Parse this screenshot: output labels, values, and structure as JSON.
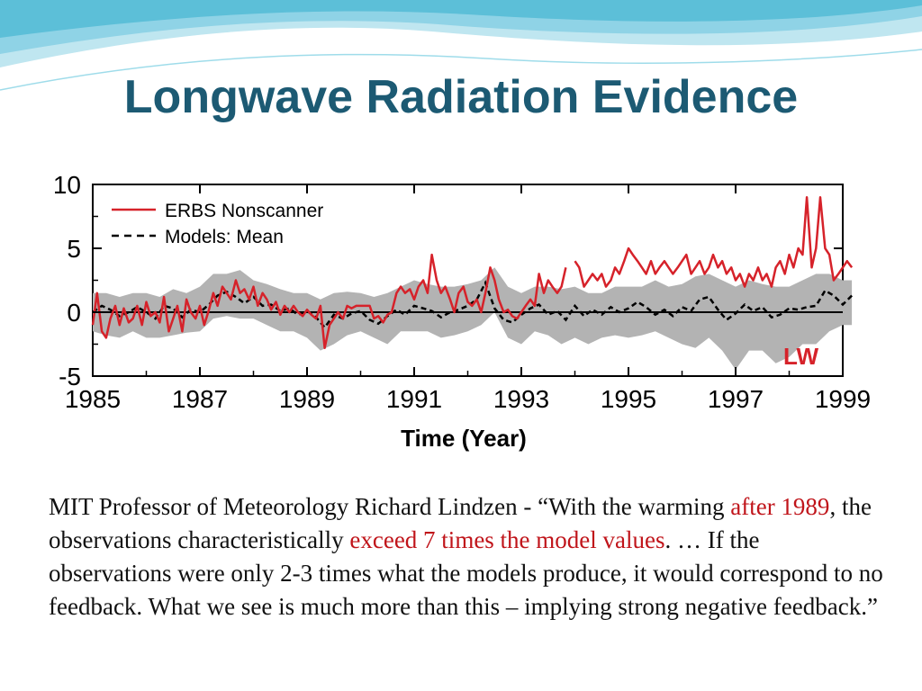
{
  "slide": {
    "title": "Longwave Radiation Evidence",
    "caption": {
      "p1": "MIT Professor of Meteorology Richard Lindzen - “With the warming ",
      "h1": "after 1989",
      "p2": ", the observations characteristically ",
      "h2": "exceed 7 times the model values",
      "p3": ". … If the observations were only 2-3 times what the models produce, it would correspond to no feedback. What we see is much more than this – implying strong negative feedback.”"
    }
  },
  "colors": {
    "title": "#1c5a73",
    "highlight": "#c0141a",
    "observation_line": "#d6222a",
    "model_line": "#000000",
    "model_band": "#b3b3b3"
  },
  "chart_data": {
    "type": "line",
    "xlabel": "Time (Year)",
    "ylabel": "",
    "xlim": [
      1985,
      1999
    ],
    "ylim": [
      -5,
      10
    ],
    "x_ticks": [
      1985,
      1987,
      1989,
      1991,
      1993,
      1995,
      1997,
      1999
    ],
    "x_tick_labels": [
      "1985",
      "1987",
      "1989",
      "1991",
      "1993",
      "1995",
      "1997",
      "1999"
    ],
    "y_ticks": [
      -5,
      0,
      5,
      10
    ],
    "y_tick_labels": [
      "-5",
      "0",
      "5",
      "10"
    ],
    "annotation": "LW",
    "legend_position": "top-left",
    "grid": false,
    "series": [
      {
        "name": "ERBS Nonscanner",
        "style": "solid",
        "points": [
          [
            1985.0,
            -1
          ],
          [
            1985.08,
            1.5
          ],
          [
            1985.17,
            -1.5
          ],
          [
            1985.25,
            -2
          ],
          [
            1985.33,
            -0.5
          ],
          [
            1985.42,
            0.5
          ],
          [
            1985.5,
            -1
          ],
          [
            1985.58,
            0.3
          ],
          [
            1985.67,
            -0.8
          ],
          [
            1985.75,
            -0.5
          ],
          [
            1985.83,
            0.5
          ],
          [
            1985.92,
            -1
          ],
          [
            1986.0,
            0.8
          ],
          [
            1986.08,
            -0.3
          ],
          [
            1986.17,
            0
          ],
          [
            1986.25,
            -0.8
          ],
          [
            1986.33,
            1.2
          ],
          [
            1986.42,
            -1.5
          ],
          [
            1986.5,
            -0.5
          ],
          [
            1986.58,
            0.5
          ],
          [
            1986.67,
            -1.5
          ],
          [
            1986.75,
            1
          ],
          [
            1986.83,
            0
          ],
          [
            1986.92,
            -0.5
          ],
          [
            1987.0,
            0.5
          ],
          [
            1987.08,
            -1
          ],
          [
            1987.17,
            0.2
          ],
          [
            1987.25,
            1.5
          ],
          [
            1987.33,
            0.5
          ],
          [
            1987.42,
            2
          ],
          [
            1987.5,
            1.5
          ],
          [
            1987.58,
            1
          ],
          [
            1987.67,
            2.5
          ],
          [
            1987.75,
            1.5
          ],
          [
            1987.83,
            1.8
          ],
          [
            1987.92,
            1
          ],
          [
            1988.0,
            2
          ],
          [
            1988.08,
            0.5
          ],
          [
            1988.17,
            1.5
          ],
          [
            1988.25,
            1
          ],
          [
            1988.33,
            0.2
          ],
          [
            1988.42,
            0.8
          ],
          [
            1988.5,
            -0.2
          ],
          [
            1988.58,
            0.5
          ],
          [
            1988.67,
            0
          ],
          [
            1988.75,
            0.5
          ],
          [
            1988.83,
            0
          ],
          [
            1988.92,
            -0.3
          ],
          [
            1989.0,
            0.2
          ],
          [
            1989.08,
            -0.2
          ],
          [
            1989.17,
            -0.5
          ],
          [
            1989.25,
            0.5
          ],
          [
            1989.33,
            -2.8
          ],
          [
            1989.42,
            -1
          ],
          [
            1989.5,
            -0.5
          ],
          [
            1989.58,
            0
          ],
          [
            1989.67,
            -0.5
          ],
          [
            1989.75,
            0.5
          ],
          [
            1989.83,
            0.3
          ],
          [
            1989.92,
            0.5
          ],
          [
            1990.0,
            0.5
          ],
          [
            1990.08,
            0.5
          ],
          [
            1990.17,
            0.5
          ],
          [
            1990.25,
            -0.5
          ],
          [
            1990.33,
            -0.3
          ],
          [
            1990.42,
            -0.8
          ],
          [
            1990.5,
            -0.2
          ],
          [
            1990.58,
            0
          ],
          [
            1990.67,
            1.5
          ],
          [
            1990.75,
            2
          ],
          [
            1990.83,
            1.5
          ],
          [
            1990.92,
            1.8
          ],
          [
            1991.0,
            1
          ],
          [
            1991.08,
            2
          ],
          [
            1991.17,
            2.5
          ],
          [
            1991.25,
            1.5
          ],
          [
            1991.33,
            4.5
          ],
          [
            1991.42,
            2.5
          ],
          [
            1991.5,
            1.5
          ],
          [
            1991.58,
            2
          ],
          [
            1991.67,
            1
          ],
          [
            1991.75,
            0
          ],
          [
            1991.83,
            1.5
          ],
          [
            1991.92,
            2
          ],
          [
            1992.0,
            0.8
          ],
          [
            1992.08,
            0.5
          ],
          [
            1992.17,
            1
          ],
          [
            1992.25,
            0
          ],
          [
            1992.33,
            1.5
          ],
          [
            1992.42,
            3.5
          ],
          [
            1992.5,
            2.5
          ],
          [
            1992.58,
            1
          ],
          [
            1992.67,
            0
          ],
          [
            1992.75,
            0.2
          ],
          [
            1992.83,
            -0.3
          ],
          [
            1992.92,
            -0.5
          ],
          [
            1993.0,
            0
          ],
          [
            1993.08,
            0.5
          ],
          [
            1993.17,
            1
          ],
          [
            1993.25,
            0.5
          ],
          [
            1993.33,
            3
          ],
          [
            1993.42,
            1.5
          ],
          [
            1993.5,
            2.5
          ],
          [
            1993.58,
            2
          ],
          [
            1993.67,
            1.5
          ],
          [
            1993.75,
            2
          ],
          [
            1993.83,
            3.5
          ],
          null,
          [
            1994.0,
            4
          ],
          [
            1994.08,
            3.5
          ],
          [
            1994.17,
            2
          ],
          [
            1994.25,
            2.5
          ],
          [
            1994.33,
            3
          ],
          [
            1994.42,
            2.5
          ],
          [
            1994.5,
            3
          ],
          [
            1994.58,
            2
          ],
          [
            1994.67,
            2.5
          ],
          [
            1994.75,
            3.5
          ],
          [
            1994.83,
            3
          ],
          [
            1994.92,
            4
          ],
          [
            1995.0,
            5
          ],
          [
            1995.08,
            4.5
          ],
          [
            1995.17,
            4
          ],
          [
            1995.25,
            3.5
          ],
          [
            1995.33,
            3
          ],
          [
            1995.42,
            4
          ],
          [
            1995.5,
            3
          ],
          [
            1995.58,
            3.5
          ],
          [
            1995.67,
            4
          ],
          [
            1995.75,
            3.5
          ],
          [
            1995.83,
            3
          ],
          [
            1995.92,
            3.5
          ],
          [
            1996.0,
            4
          ],
          [
            1996.08,
            4.5
          ],
          [
            1996.17,
            3
          ],
          [
            1996.25,
            3.5
          ],
          [
            1996.33,
            4
          ],
          [
            1996.42,
            3
          ],
          [
            1996.5,
            3.5
          ],
          [
            1996.58,
            4.5
          ],
          [
            1996.67,
            3.5
          ],
          [
            1996.75,
            4
          ],
          [
            1996.83,
            3
          ],
          [
            1996.92,
            3.5
          ],
          [
            1997.0,
            2.5
          ],
          [
            1997.08,
            3
          ],
          [
            1997.17,
            2
          ],
          [
            1997.25,
            3
          ],
          [
            1997.33,
            2.5
          ],
          [
            1997.42,
            3.5
          ],
          [
            1997.5,
            2.5
          ],
          [
            1997.58,
            3
          ],
          [
            1997.67,
            2
          ],
          [
            1997.75,
            3.5
          ],
          [
            1997.83,
            4
          ],
          [
            1997.92,
            3
          ],
          [
            1998.0,
            4.5
          ],
          [
            1998.08,
            3.5
          ],
          [
            1998.17,
            5
          ],
          [
            1998.25,
            4.5
          ],
          [
            1998.33,
            9
          ],
          [
            1998.42,
            3.5
          ],
          [
            1998.5,
            5
          ],
          [
            1998.58,
            9
          ],
          [
            1998.67,
            5
          ],
          [
            1998.75,
            4.5
          ],
          [
            1998.83,
            2.5
          ],
          [
            1998.92,
            3
          ],
          [
            1999.0,
            3.5
          ],
          [
            1999.08,
            4
          ],
          [
            1999.17,
            3.5
          ]
        ]
      },
      {
        "name": "Models: Mean",
        "style": "dashed",
        "points": [
          [
            1985.0,
            0
          ],
          [
            1985.17,
            0.5
          ],
          [
            1985.33,
            0.2
          ],
          [
            1985.5,
            -0.3
          ],
          [
            1985.67,
            0
          ],
          [
            1985.83,
            0.4
          ],
          [
            1986.0,
            0
          ],
          [
            1986.17,
            -0.5
          ],
          [
            1986.33,
            0.5
          ],
          [
            1986.5,
            0.3
          ],
          [
            1986.67,
            -0.4
          ],
          [
            1986.83,
            0.2
          ],
          [
            1987.0,
            0
          ],
          [
            1987.17,
            0.6
          ],
          [
            1987.33,
            1.3
          ],
          [
            1987.5,
            1.6
          ],
          [
            1987.67,
            1.2
          ],
          [
            1987.83,
            0.7
          ],
          [
            1988.0,
            1.2
          ],
          [
            1988.17,
            0.5
          ],
          [
            1988.33,
            0.6
          ],
          [
            1988.5,
            0.1
          ],
          [
            1988.67,
            0.3
          ],
          [
            1988.83,
            -0.2
          ],
          [
            1989.0,
            0.1
          ],
          [
            1989.17,
            -0.4
          ],
          [
            1989.33,
            -1.2
          ],
          [
            1989.5,
            -0.2
          ],
          [
            1989.67,
            -0.5
          ],
          [
            1989.83,
            -0.1
          ],
          [
            1990.0,
            0.1
          ],
          [
            1990.17,
            -0.6
          ],
          [
            1990.33,
            -0.9
          ],
          [
            1990.5,
            -0.3
          ],
          [
            1990.67,
            0.2
          ],
          [
            1990.83,
            -0.2
          ],
          [
            1991.0,
            0.5
          ],
          [
            1991.17,
            0.3
          ],
          [
            1991.33,
            0.1
          ],
          [
            1991.5,
            -0.4
          ],
          [
            1991.67,
            0
          ],
          [
            1991.83,
            0.2
          ],
          [
            1992.0,
            0.5
          ],
          [
            1992.17,
            1
          ],
          [
            1992.33,
            2.3
          ],
          [
            1992.5,
            0.3
          ],
          [
            1992.67,
            -0.6
          ],
          [
            1992.83,
            -0.8
          ],
          [
            1993.0,
            -0.2
          ],
          [
            1993.17,
            0.3
          ],
          [
            1993.33,
            0.6
          ],
          [
            1993.5,
            -0.2
          ],
          [
            1993.67,
            0.1
          ],
          [
            1993.83,
            -0.6
          ],
          [
            1994.0,
            0.5
          ],
          [
            1994.17,
            -0.3
          ],
          [
            1994.33,
            0.2
          ],
          [
            1994.5,
            -0.2
          ],
          [
            1994.67,
            0.4
          ],
          [
            1994.83,
            0
          ],
          [
            1995.0,
            0.3
          ],
          [
            1995.17,
            0.8
          ],
          [
            1995.33,
            0.4
          ],
          [
            1995.5,
            -0.2
          ],
          [
            1995.67,
            0.2
          ],
          [
            1995.83,
            -0.3
          ],
          [
            1996.0,
            0.4
          ],
          [
            1996.17,
            0.1
          ],
          [
            1996.33,
            1
          ],
          [
            1996.5,
            1.2
          ],
          [
            1996.67,
            0.2
          ],
          [
            1996.83,
            -0.6
          ],
          [
            1997.0,
            -0.1
          ],
          [
            1997.17,
            0.6
          ],
          [
            1997.33,
            0.1
          ],
          [
            1997.5,
            0.4
          ],
          [
            1997.67,
            -0.4
          ],
          [
            1997.83,
            -0.2
          ],
          [
            1998.0,
            0.3
          ],
          [
            1998.17,
            0.2
          ],
          [
            1998.33,
            0.4
          ],
          [
            1998.5,
            0.5
          ],
          [
            1998.67,
            1.7
          ],
          [
            1998.83,
            1.3
          ],
          [
            1999.0,
            0.6
          ],
          [
            1999.17,
            1.3
          ]
        ]
      }
    ],
    "model_band": {
      "x": [
        1985,
        1985.25,
        1985.5,
        1985.75,
        1986,
        1986.25,
        1986.5,
        1986.75,
        1987,
        1987.25,
        1987.5,
        1987.75,
        1988,
        1988.25,
        1988.5,
        1988.75,
        1989,
        1989.25,
        1989.5,
        1989.75,
        1990,
        1990.25,
        1990.5,
        1990.75,
        1991,
        1991.25,
        1991.5,
        1991.75,
        1992,
        1992.25,
        1992.5,
        1992.75,
        1993,
        1993.25,
        1993.5,
        1993.75,
        1994,
        1994.25,
        1994.5,
        1994.75,
        1995,
        1995.25,
        1995.5,
        1995.75,
        1996,
        1996.25,
        1996.5,
        1996.75,
        1997,
        1997.25,
        1997.5,
        1997.75,
        1998,
        1998.25,
        1998.5,
        1998.75,
        1999,
        1999.17
      ],
      "upper": [
        1.5,
        1.5,
        1.2,
        1.5,
        1.5,
        1.2,
        1.8,
        1.5,
        2,
        3,
        3,
        3.3,
        2.5,
        2.2,
        1.8,
        1.5,
        1.5,
        1,
        1.5,
        1.6,
        1.5,
        1.2,
        1.5,
        2,
        2.5,
        2.2,
        2,
        2,
        2.2,
        2.5,
        3.5,
        2,
        1.5,
        2,
        2,
        1.8,
        2,
        1.5,
        1.5,
        2,
        2,
        2,
        2.5,
        2,
        2.2,
        2.8,
        3,
        2.5,
        2,
        2.5,
        2.2,
        2,
        2,
        2.5,
        3,
        3,
        2.5,
        2.5
      ],
      "lower": [
        -1.5,
        -1.8,
        -2,
        -1.5,
        -2,
        -2,
        -1.8,
        -1.6,
        -1.5,
        -0.5,
        -0.3,
        -0.5,
        -0.5,
        -1,
        -1.5,
        -1.5,
        -2,
        -3,
        -2.5,
        -1.8,
        -1.5,
        -2,
        -2.5,
        -1.5,
        -1.5,
        -1.5,
        -2,
        -1.8,
        -1.5,
        -1,
        0,
        -2,
        -2.5,
        -1.5,
        -1.8,
        -2.5,
        -2,
        -2.5,
        -2,
        -1.8,
        -2,
        -1.8,
        -1.5,
        -2,
        -2.5,
        -2.8,
        -2,
        -3,
        -4.5,
        -3,
        -3,
        -4,
        -3.5,
        -2.5,
        -2.5,
        -1.5,
        -1,
        -1
      ]
    }
  }
}
